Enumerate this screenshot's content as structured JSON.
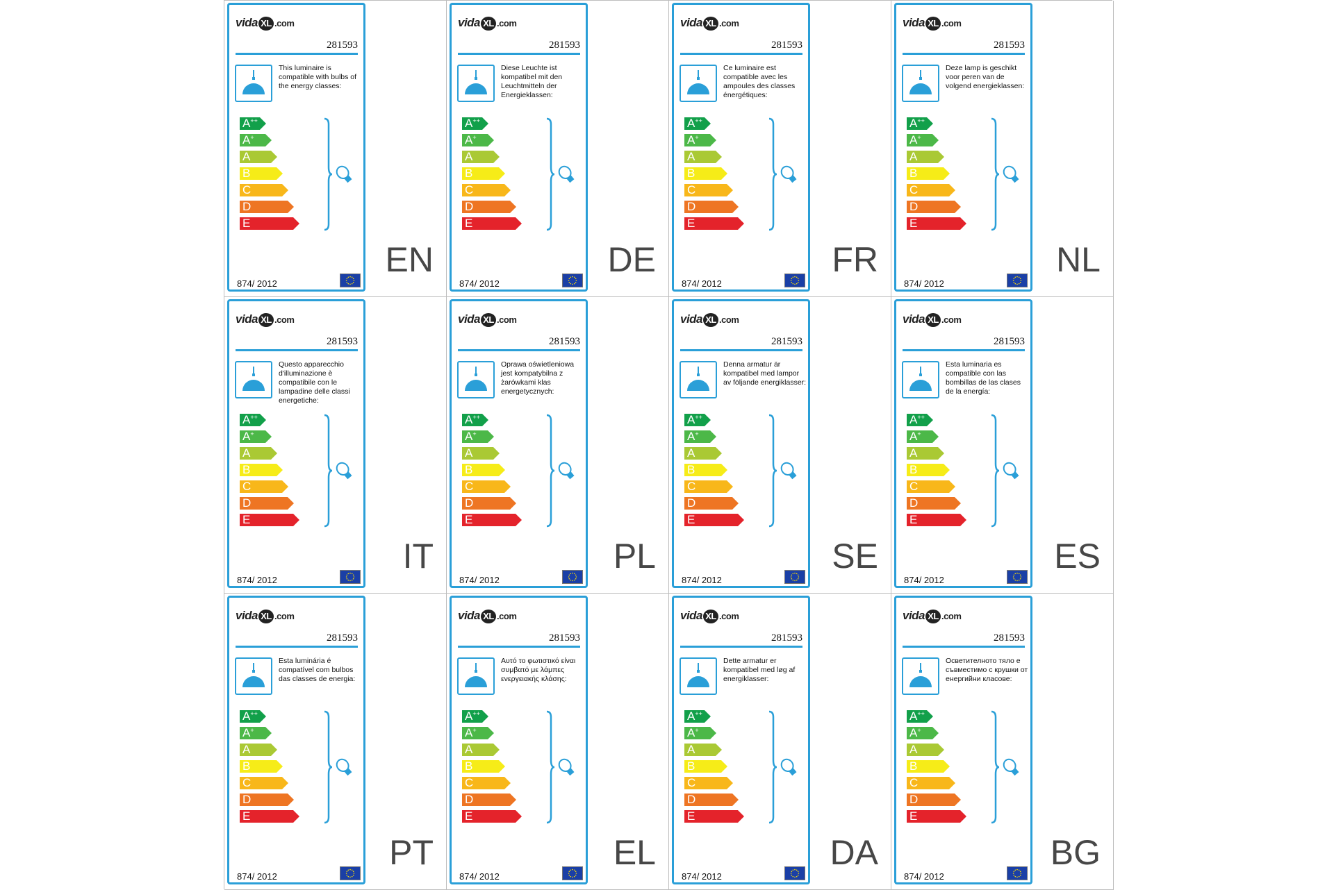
{
  "colors": {
    "accent": "#2a9fd8",
    "class_colors": [
      "#12a04a",
      "#4cb848",
      "#aac934",
      "#f6ec18",
      "#f8b71a",
      "#ee7523",
      "#e4232b"
    ]
  },
  "brand": {
    "name": "vida",
    "xl": "XL",
    "domain": ".com"
  },
  "model_number": "281593",
  "regulation": "874/ 2012",
  "energy_classes": [
    {
      "letter": "A",
      "sup": "++"
    },
    {
      "letter": "A",
      "sup": "+"
    },
    {
      "letter": "A",
      "sup": ""
    },
    {
      "letter": "B",
      "sup": ""
    },
    {
      "letter": "C",
      "sup": ""
    },
    {
      "letter": "D",
      "sup": ""
    },
    {
      "letter": "E",
      "sup": ""
    }
  ],
  "icons": {
    "lamp": "pendant-lamp-icon",
    "bulb": "light-bulb-icon",
    "flag": "eu-flag-icon"
  },
  "labels": [
    {
      "lang": "EN",
      "text": "This luminaire is compatible with bulbs of the energy classes:"
    },
    {
      "lang": "DE",
      "text": "Diese Leuchte ist kompatibel mit den Leuchtmitteln der Energieklassen:"
    },
    {
      "lang": "FR",
      "text": "Ce luminaire est compatible avec les ampoules des classes énergétiques:"
    },
    {
      "lang": "NL",
      "text": "Deze lamp is geschikt voor peren van de volgend energieklassen:"
    },
    {
      "lang": "IT",
      "text": "Questo apparecchio d'illuminazione è compatibile con le lampadine delle classi energetiche:"
    },
    {
      "lang": "PL",
      "text": "Oprawa oświetleniowa jest kompatybilna z żarówkami klas energetycznych:"
    },
    {
      "lang": "SE",
      "text": "Denna armatur är kompatibel med lampor av följande energiklasser:"
    },
    {
      "lang": "ES",
      "text": "Esta luminaria es compatible con las bombillas de las clases de la energía:"
    },
    {
      "lang": "PT",
      "text": "Esta luminária é compatível com bulbos das classes de energia:"
    },
    {
      "lang": "EL",
      "text": "Αυτό το φωτιστικό είναι συμβατό με λάμπες ενεργειακής κλάσης:"
    },
    {
      "lang": "DA",
      "text": "Dette armatur er kompatibel med løg af energiklasser:"
    },
    {
      "lang": "BG",
      "text": "Осветителното тяло е съвместимо с крушки от енергийни класове:"
    }
  ]
}
